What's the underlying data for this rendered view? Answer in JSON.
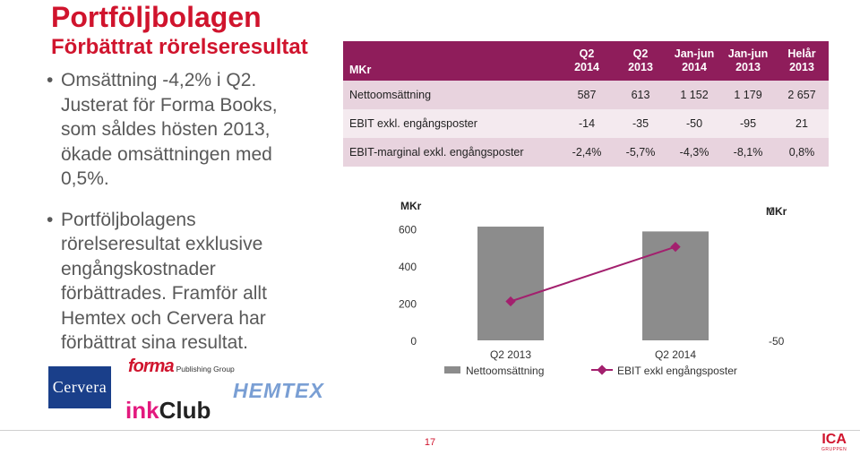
{
  "slide": {
    "title": "Portföljbolagen",
    "subtitle": "Förbättrat rörelseresultat",
    "bullets": [
      "Omsättning -4,2% i Q2. Justerat för Forma Books, som såldes hösten 2013, ökade omsättningen med 0,5%.",
      "Portföljbolagens rörelseresultat exklusive engångskostnader förbättrades. Framför allt Hemtex och Cervera har förbättrat sina resultat."
    ],
    "page_number": "17"
  },
  "table": {
    "unit_label": "MKr",
    "columns": [
      {
        "l1": "Q2",
        "l2": "2014"
      },
      {
        "l1": "Q2",
        "l2": "2013"
      },
      {
        "l1": "Jan-jun",
        "l2": "2014"
      },
      {
        "l1": "Jan-jun",
        "l2": "2013"
      },
      {
        "l1": "Helår",
        "l2": "2013"
      }
    ],
    "rows": [
      {
        "label": "Nettoomsättning",
        "values": [
          "587",
          "613",
          "1 152",
          "1 179",
          "2 657"
        ]
      },
      {
        "label": "EBIT exkl. engångsposter",
        "values": [
          "-14",
          "-35",
          "-50",
          "-95",
          "21"
        ]
      },
      {
        "label": "EBIT-marginal exkl. engångsposter",
        "values": [
          "-2,4%",
          "-5,7%",
          "-4,3%",
          "-8,1%",
          "0,8%"
        ]
      }
    ],
    "header_color": "#8f1d5b"
  },
  "chart_data": {
    "type": "bar",
    "categories": [
      "Q2 2013",
      "Q2 2014"
    ],
    "series": [
      {
        "name": "Nettoomsättning",
        "type": "bar",
        "axis": "left",
        "values": [
          613,
          587
        ],
        "color": "#8c8c8c"
      },
      {
        "name": "EBIT exkl engångsposter",
        "type": "line",
        "axis": "right",
        "values": [
          -35,
          -14
        ],
        "color": "#a3206e"
      }
    ],
    "left_axis": {
      "label": "MKr",
      "ticks": [
        "0",
        "200",
        "400",
        "600"
      ],
      "ylim": [
        0,
        700
      ]
    },
    "right_axis": {
      "label": "MKr",
      "ticks": [
        "-50",
        "0"
      ],
      "ylim": [
        -50,
        0
      ]
    },
    "legend": "bottom",
    "grid": false
  },
  "logos": {
    "cervera": "Cervera",
    "forma": "forma",
    "forma_sub": "Publishing Group",
    "ink": "ink",
    "club": "Club",
    "hemtex": "HEMTEX",
    "ica": "ICA",
    "ica_sub": "GRUPPEN"
  }
}
